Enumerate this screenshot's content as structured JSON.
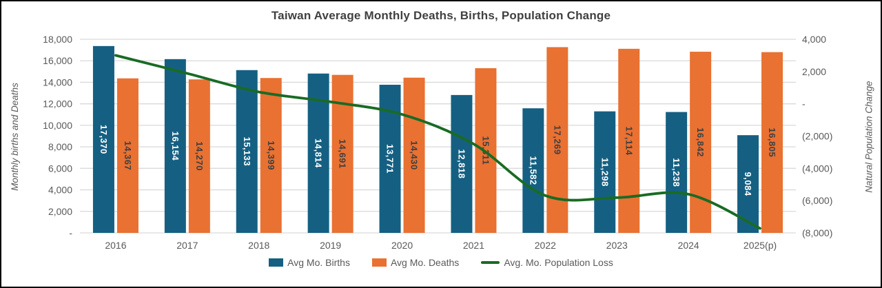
{
  "title": "Taiwan Average Monthly Deaths, Births, Population Change",
  "legend": {
    "position": "bottom",
    "items": [
      {
        "label": "Avg Mo. Births",
        "swatch": "rect",
        "color": "#156082"
      },
      {
        "label": "Avg Mo. Deaths",
        "swatch": "rect",
        "color": "#E97132"
      },
      {
        "label": "Avg. Mo. Population Loss",
        "swatch": "line",
        "color": "#196B24"
      }
    ]
  },
  "colors": {
    "births_bar": "#156082",
    "deaths_bar": "#E97132",
    "population_loss_line": "#196B24",
    "gridline": "#D9D9D9",
    "axis_text": "#595959",
    "title_text": "#404040",
    "births_label_text": "#FFFFFF",
    "deaths_label_text": "#404040",
    "background": "#FFFFFF",
    "border": "#000000"
  },
  "chart_data": {
    "type": "bar",
    "title": "Taiwan Average Monthly Deaths, Births, Population Change",
    "categories": [
      "2016",
      "2017",
      "2018",
      "2019",
      "2020",
      "2021",
      "2022",
      "2023",
      "2024",
      "2025(p)"
    ],
    "series": [
      {
        "name": "Avg Mo. Births",
        "type": "bar",
        "axis": "left",
        "color": "#156082",
        "label_color": "#FFFFFF",
        "values": [
          17370,
          16154,
          15133,
          14814,
          13771,
          12818,
          11582,
          11298,
          11238,
          9084
        ],
        "data_labels": [
          "17,370",
          "16,154",
          "15,133",
          "14,814",
          "13,771",
          "12,818",
          "11,582",
          "11,298",
          "11,238",
          "9,084"
        ]
      },
      {
        "name": "Avg Mo. Deaths",
        "type": "bar",
        "axis": "left",
        "color": "#E97132",
        "label_color": "#404040",
        "values": [
          14367,
          14270,
          14399,
          14691,
          14430,
          15311,
          17269,
          17114,
          16842,
          16805
        ],
        "data_labels": [
          "14,367",
          "14,270",
          "14,399",
          "14,691",
          "14,430",
          "15,311",
          "17,269",
          "17,114",
          "16,842",
          "16,805"
        ]
      },
      {
        "name": "Avg. Mo. Population Loss",
        "type": "line",
        "axis": "right",
        "color": "#196B24",
        "smooth": true,
        "values": [
          3003,
          1884,
          734,
          123,
          -659,
          -2493,
          -5687,
          -5816,
          -5604,
          -7721
        ]
      }
    ],
    "left_axis": {
      "title": "Monthly births and Deaths",
      "min": 0,
      "max": 18000,
      "step": 2000,
      "tick_labels": [
        "18,000",
        "16,000",
        "14,000",
        "12,000",
        "10,000",
        "8,000",
        "6,000",
        "4,000",
        "2,000",
        "-"
      ]
    },
    "right_axis": {
      "title": "Natural Population Change",
      "min": -8000,
      "max": 4000,
      "step": 2000,
      "tick_labels": [
        "4,000",
        "2,000",
        "-",
        "(2,000)",
        "(4,000)",
        "(6,000)",
        "(8,000)"
      ]
    },
    "grid": true,
    "legend_position": "bottom"
  }
}
